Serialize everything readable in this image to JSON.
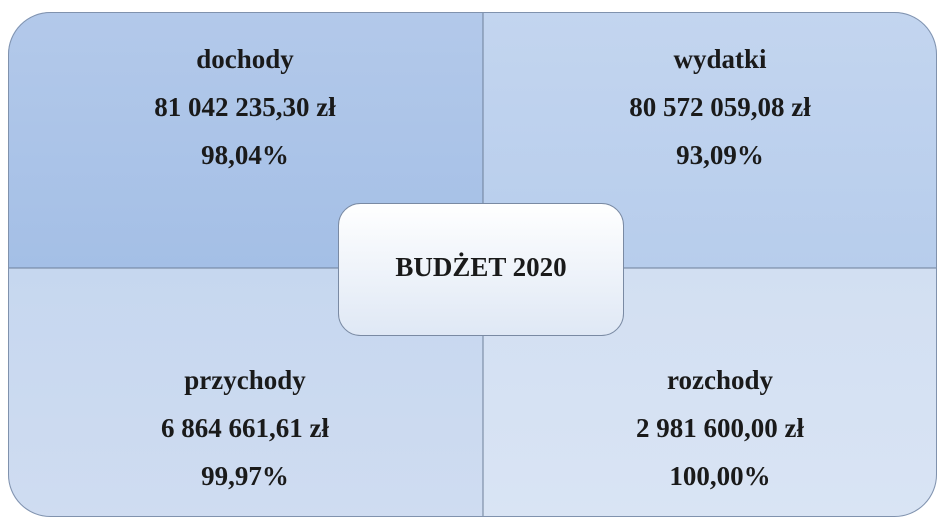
{
  "center": {
    "title": "BUDŻET 2020"
  },
  "quadrants": [
    {
      "label": "dochody",
      "amount": "81 042 235,30 zł",
      "percent": "98,04%"
    },
    {
      "label": "wydatki",
      "amount": "80 572 059,08 zł",
      "percent": "93,09%"
    },
    {
      "label": "przychody",
      "amount": "6 864 661,61 zł",
      "percent": "99,97%"
    },
    {
      "label": "rozchody",
      "amount": "2 981 600,00 zł",
      "percent": "100,00%"
    }
  ]
}
